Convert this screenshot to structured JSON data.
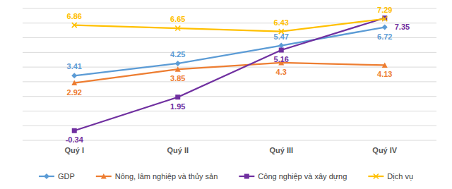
{
  "chart_data": {
    "type": "line",
    "categories": [
      "Quý I",
      "Quý II",
      "Quý III",
      "Quý IV"
    ],
    "series": [
      {
        "name": "GDP",
        "color": "#5b9bd5",
        "marker": "diamond",
        "values": [
          3.41,
          4.25,
          5.47,
          6.72
        ]
      },
      {
        "name": "Nông, lâm nghiệp và thủy sản",
        "color": "#ed7d31",
        "marker": "triangle",
        "values": [
          2.92,
          3.85,
          4.3,
          4.13
        ]
      },
      {
        "name": "Công nghiệp và xây dựng",
        "color": "#7030a0",
        "marker": "square",
        "values": [
          -0.34,
          1.95,
          5.16,
          7.35
        ]
      },
      {
        "name": "Dịch vụ",
        "color": "#ffc000",
        "marker": "x",
        "values": [
          6.86,
          6.65,
          6.43,
          7.29
        ]
      }
    ],
    "ylim": [
      -1,
      8
    ],
    "yticks": [
      -1,
      0,
      1,
      2,
      3,
      4,
      5,
      6,
      7,
      8
    ],
    "grid": true,
    "data_labels": true,
    "tick_labels": "x",
    "legend": "bottom"
  }
}
